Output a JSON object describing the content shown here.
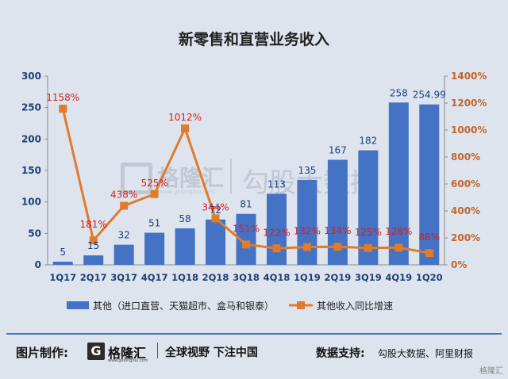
{
  "chart_data": {
    "type": "bar+line",
    "title": "新零售和直营业务收入",
    "categories": [
      "1Q17",
      "2Q17",
      "3Q17",
      "4Q17",
      "1Q18",
      "2Q18",
      "3Q18",
      "4Q18",
      "1Q19",
      "2Q19",
      "3Q19",
      "4Q19",
      "1Q20"
    ],
    "series": [
      {
        "name": "其他（进口直营、天猫超市、盒马和银泰）",
        "type": "bar",
        "axis": "left",
        "color": "#4472c4",
        "values": [
          5,
          15,
          32,
          51,
          58,
          72,
          81,
          113,
          135,
          167,
          182,
          258,
          254.99
        ],
        "labels": [
          "5",
          "15",
          "32",
          "51",
          "58",
          "72",
          "81",
          "113",
          "135",
          "167",
          "182",
          "258",
          "254.99"
        ]
      },
      {
        "name": "其他收入同比增速",
        "type": "line",
        "axis": "right",
        "color": "#e07b2a",
        "values": [
          1158,
          181,
          438,
          525,
          1012,
          344,
          151,
          122,
          132,
          134,
          125,
          128,
          88
        ],
        "labels": [
          "1158%",
          "181%",
          "438%",
          "525%",
          "1012%",
          "344%",
          "151%",
          "122%",
          "132%",
          "134%",
          "125%",
          "128%",
          "88%"
        ]
      }
    ],
    "ylim_left": [
      0,
      300
    ],
    "yticks_left": [
      "0",
      "50",
      "100",
      "150",
      "200",
      "250",
      "300"
    ],
    "ylim_right": [
      0,
      1400
    ],
    "yticks_right": [
      "0%",
      "200%",
      "400%",
      "600%",
      "800%",
      "1000%",
      "1200%",
      "1400%"
    ],
    "legend_position": "bottom",
    "grid": false
  },
  "watermark": {
    "brand": "格隆汇",
    "site": "www.gelonghui.com",
    "text": "勾股大数据"
  },
  "footer": {
    "made_by_label": "图片制作:",
    "logo_glyph": "G",
    "logo_name": "格隆汇",
    "logo_site": "www.gelonghui.com",
    "slogan": "全球视野 下注中国",
    "source_label": "数据支持:",
    "source_value": "勾股大数据、阿里财报",
    "corner_mark": "格隆汇"
  }
}
